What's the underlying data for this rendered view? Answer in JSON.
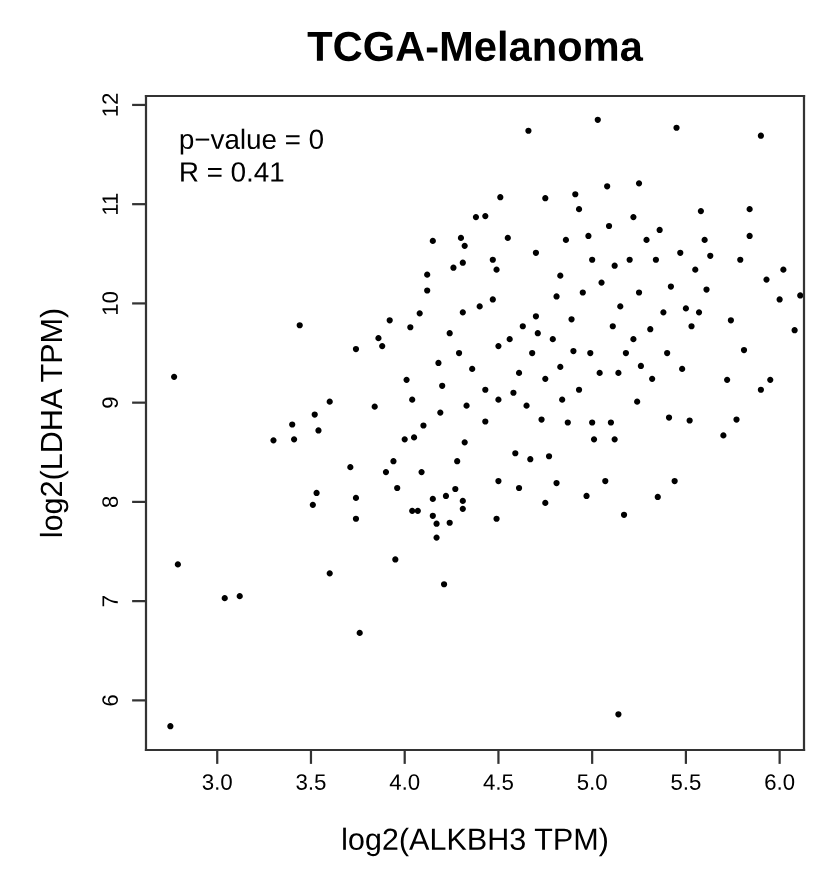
{
  "chart_data": {
    "type": "scatter",
    "title": "TCGA-Melanoma",
    "xlabel": "log2(ALKBH3 TPM)",
    "ylabel": "log2(LDHA TPM)",
    "annotations": [
      "p−value = 0",
      "R = 0.41"
    ],
    "xlim": [
      2.62,
      6.13
    ],
    "ylim": [
      5.5,
      12.09
    ],
    "xticks": [
      {
        "value": 3,
        "label": "3.0"
      },
      {
        "value": 3.5,
        "label": "3.5"
      },
      {
        "value": 4,
        "label": "4.0"
      },
      {
        "value": 4.5,
        "label": "4.5"
      },
      {
        "value": 5,
        "label": "5.0"
      },
      {
        "value": 5.5,
        "label": "5.5"
      },
      {
        "value": 6,
        "label": "6.0"
      }
    ],
    "yticks": [
      6,
      7,
      8,
      9,
      10,
      11,
      12
    ],
    "grid": false,
    "marker": "circle",
    "series": [
      {
        "color": "#000000",
        "x": [
          2.77,
          2.79,
          3.04,
          3.12,
          2.75,
          3.76,
          5.14,
          3.44,
          3.3,
          3.41,
          3.4,
          3.52,
          3.54,
          3.6,
          3.51,
          3.53,
          3.6,
          3.74,
          3.74,
          3.74,
          3.71,
          3.84,
          3.86,
          3.88,
          3.92,
          3.95,
          4.21,
          3.9,
          3.94,
          3.96,
          4.0,
          4.03,
          4.04,
          4.07,
          4.08,
          4.01,
          4.04,
          4.05,
          4.1,
          4.09,
          4.12,
          4.12,
          4.15,
          4.15,
          4.17,
          4.17,
          4.15,
          4.18,
          4.2,
          4.19,
          4.22,
          4.24,
          4.27,
          4.28,
          4.31,
          4.31,
          4.26,
          4.3,
          4.32,
          4.31,
          4.24,
          4.29,
          4.31,
          4.33,
          4.32,
          4.36,
          4.38,
          4.43,
          4.4,
          4.43,
          4.43,
          4.47,
          4.49,
          4.47,
          4.49,
          4.5,
          4.5,
          4.5,
          4.51,
          4.55,
          4.56,
          4.58,
          4.59,
          4.61,
          4.61,
          4.63,
          4.65,
          4.66,
          4.67,
          4.68,
          4.7,
          4.7,
          4.71,
          4.73,
          4.75,
          4.75,
          4.75,
          4.77,
          4.79,
          4.81,
          4.81,
          4.83,
          4.83,
          4.84,
          4.86,
          4.87,
          4.89,
          4.9,
          4.91,
          4.93,
          4.93,
          4.95,
          4.97,
          4.98,
          4.99,
          5.0,
          5.0,
          5.01,
          5.03,
          5.04,
          5.05,
          5.07,
          5.08,
          5.09,
          5.1,
          5.11,
          5.12,
          5.12,
          5.14,
          5.15,
          5.17,
          5.18,
          5.2,
          5.22,
          5.22,
          5.24,
          5.25,
          5.25,
          5.26,
          5.29,
          5.31,
          5.32,
          5.34,
          5.35,
          5.36,
          5.38,
          5.4,
          5.41,
          5.42,
          5.44,
          5.45,
          5.47,
          5.48,
          5.5,
          5.52,
          5.53,
          5.55,
          5.57,
          5.58,
          5.6,
          5.61,
          5.63,
          5.9,
          5.79,
          5.84,
          5.93,
          6.0,
          6.08,
          6.11,
          5.74,
          5.81,
          5.9,
          5.95,
          5.77,
          5.7,
          5.84,
          6.02,
          5.72
        ],
        "values": [
          9.26,
          7.37,
          7.03,
          7.05,
          5.74,
          6.68,
          5.86,
          9.78,
          8.62,
          8.63,
          8.78,
          8.88,
          8.72,
          9.01,
          7.97,
          8.09,
          7.28,
          9.54,
          8.04,
          7.83,
          8.35,
          8.96,
          9.65,
          9.57,
          9.83,
          7.42,
          7.17,
          8.3,
          8.41,
          8.14,
          8.63,
          9.76,
          7.91,
          7.91,
          9.9,
          9.23,
          9.03,
          8.65,
          8.77,
          8.3,
          10.13,
          10.29,
          8.03,
          7.86,
          7.78,
          7.64,
          10.63,
          9.4,
          9.17,
          8.9,
          8.06,
          7.79,
          8.13,
          8.41,
          8.01,
          7.93,
          10.36,
          10.66,
          10.58,
          10.41,
          9.7,
          9.5,
          9.91,
          8.97,
          8.6,
          9.34,
          10.87,
          10.88,
          9.97,
          8.81,
          9.13,
          10.44,
          10.34,
          10.04,
          7.83,
          8.21,
          9.57,
          9.03,
          11.07,
          10.66,
          9.64,
          9.1,
          8.49,
          8.14,
          9.3,
          9.77,
          8.97,
          11.74,
          8.43,
          9.5,
          10.51,
          9.87,
          9.7,
          8.83,
          7.99,
          11.06,
          9.24,
          8.46,
          9.64,
          10.07,
          8.19,
          10.28,
          9.36,
          9.03,
          10.64,
          8.8,
          9.84,
          9.52,
          11.1,
          10.95,
          9.13,
          10.11,
          8.06,
          10.68,
          9.5,
          8.8,
          10.44,
          8.63,
          11.85,
          9.3,
          10.21,
          8.21,
          11.18,
          10.78,
          8.8,
          9.77,
          10.38,
          8.63,
          9.3,
          9.97,
          7.87,
          9.5,
          10.44,
          10.87,
          9.64,
          9.01,
          11.21,
          10.11,
          9.37,
          10.64,
          9.74,
          9.24,
          10.44,
          8.05,
          10.74,
          9.91,
          9.5,
          8.85,
          10.17,
          8.21,
          11.77,
          10.51,
          9.34,
          9.95,
          8.82,
          9.77,
          10.34,
          9.91,
          10.93,
          10.64,
          10.14,
          10.48,
          11.69,
          10.44,
          10.68,
          10.24,
          10.04,
          9.73,
          10.08,
          9.83,
          9.53,
          9.13,
          9.23,
          8.83,
          8.67,
          10.95,
          10.34,
          9.23
        ]
      }
    ]
  }
}
